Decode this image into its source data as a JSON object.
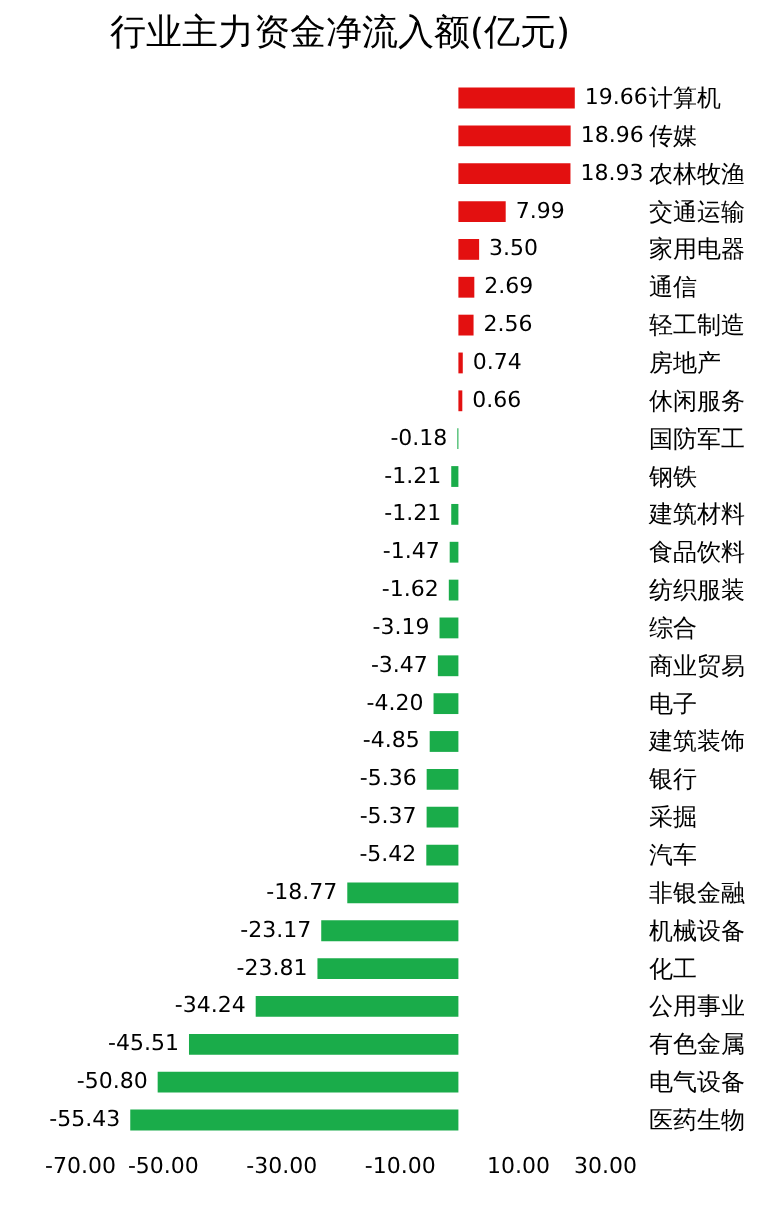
{
  "chart_data": {
    "type": "bar",
    "title": "行业主力资金净流入额(亿元)",
    "orientation": "horizontal",
    "categories": [
      "计算机",
      "传媒",
      "农林牧渔",
      "交通运输",
      "家用电器",
      "通信",
      "轻工制造",
      "房地产",
      "休闲服务",
      "国防军工",
      "钢铁",
      "建筑材料",
      "食品饮料",
      "纺织服装",
      "综合",
      "商业贸易",
      "电子",
      "建筑装饰",
      "银行",
      "采掘",
      "汽车",
      "非银金融",
      "机械设备",
      "化工",
      "公用事业",
      "有色金属",
      "电气设备",
      "医药生物"
    ],
    "values": [
      19.66,
      18.96,
      18.93,
      7.99,
      3.5,
      2.69,
      2.56,
      0.74,
      0.66,
      -0.18,
      -1.21,
      -1.21,
      -1.47,
      -1.62,
      -3.19,
      -3.47,
      -4.2,
      -4.85,
      -5.36,
      -5.37,
      -5.42,
      -18.77,
      -23.17,
      -23.81,
      -34.24,
      -45.51,
      -50.8,
      -55.43
    ],
    "value_labels": [
      "19.66",
      "18.96",
      "18.93",
      "7.99",
      "3.50",
      "2.69",
      "2.56",
      "0.74",
      "0.66",
      "-0.18",
      "-1.21",
      "-1.21",
      "-1.47",
      "-1.62",
      "-3.19",
      "-3.47",
      "-4.20",
      "-4.85",
      "-5.36",
      "-5.37",
      "-5.42",
      "-18.77",
      "-23.17",
      "-23.81",
      "-34.24",
      "-45.51",
      "-50.80",
      "-55.43"
    ],
    "colors": [
      "#e31010",
      "#e31010",
      "#e31010",
      "#e31010",
      "#e31010",
      "#e31010",
      "#e31010",
      "#e31010",
      "#e31010",
      "#1aac4a",
      "#1aac4a",
      "#1aac4a",
      "#1aac4a",
      "#1aac4a",
      "#1aac4a",
      "#1aac4a",
      "#1aac4a",
      "#1aac4a",
      "#1aac4a",
      "#1aac4a",
      "#1aac4a",
      "#1aac4a",
      "#1aac4a",
      "#1aac4a",
      "#1aac4a",
      "#1aac4a",
      "#1aac4a",
      "#1aac4a"
    ],
    "xlim": [
      -70,
      30
    ],
    "xticks": [
      {
        "value": -70,
        "label": "-70.00"
      },
      {
        "value": -50,
        "label": "-50.00"
      },
      {
        "value": -30,
        "label": "-30.00"
      },
      {
        "value": -10,
        "label": "-10.00"
      },
      {
        "value": 10,
        "label": "10.00"
      },
      {
        "value": 30,
        "label": "30.00"
      }
    ],
    "grid": false
  }
}
